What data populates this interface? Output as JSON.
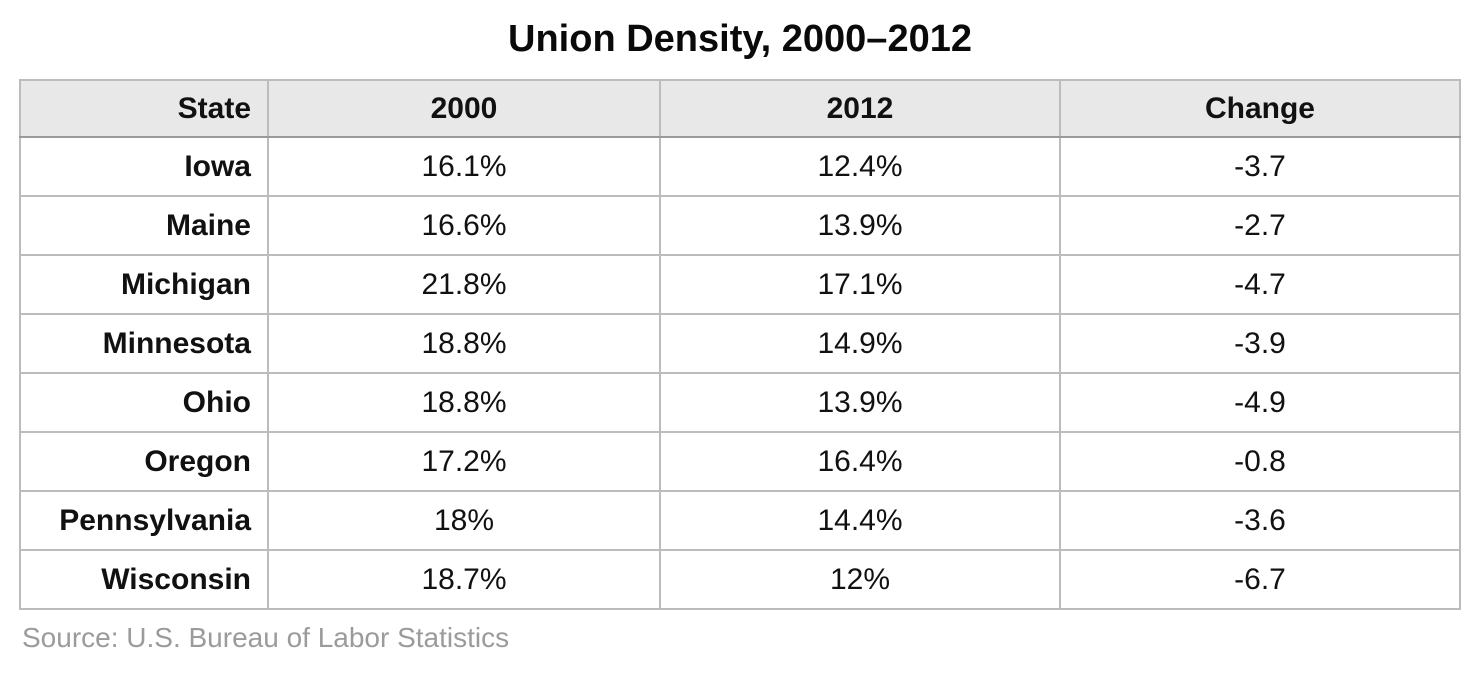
{
  "title": "Union Density, 2000–2012",
  "source_note": "Source: U.S. Bureau of Labor Statistics",
  "colors": {
    "header_bg": "#e8e8e8",
    "inner_border": "#bcbcbc",
    "outer_border": "#a3a3a3",
    "text": "#111111",
    "source_text": "#9b9b9b",
    "page_bg": "#ffffff"
  },
  "chart_data": {
    "type": "table",
    "title": "Union Density, 2000–2012",
    "columns": [
      "State",
      "2000",
      "2012",
      "Change"
    ],
    "rows": [
      [
        "Iowa",
        "16.1%",
        "12.4%",
        "-3.7"
      ],
      [
        "Maine",
        "16.6%",
        "13.9%",
        "-2.7"
      ],
      [
        "Michigan",
        "21.8%",
        "17.1%",
        "-4.7"
      ],
      [
        "Minnesota",
        "18.8%",
        "14.9%",
        "-3.9"
      ],
      [
        "Ohio",
        "18.8%",
        "13.9%",
        "-4.9"
      ],
      [
        "Oregon",
        "17.2%",
        "16.4%",
        "-0.8"
      ],
      [
        "Pennsylvania",
        "18%",
        "14.4%",
        "-3.6"
      ],
      [
        "Wisconsin",
        "18.7%",
        "12%",
        "-6.7"
      ]
    ],
    "source": "Source: U.S. Bureau of Labor Statistics",
    "layout": {
      "header_background": true,
      "grid": true,
      "first_column_align": "right",
      "value_align": "center"
    }
  }
}
